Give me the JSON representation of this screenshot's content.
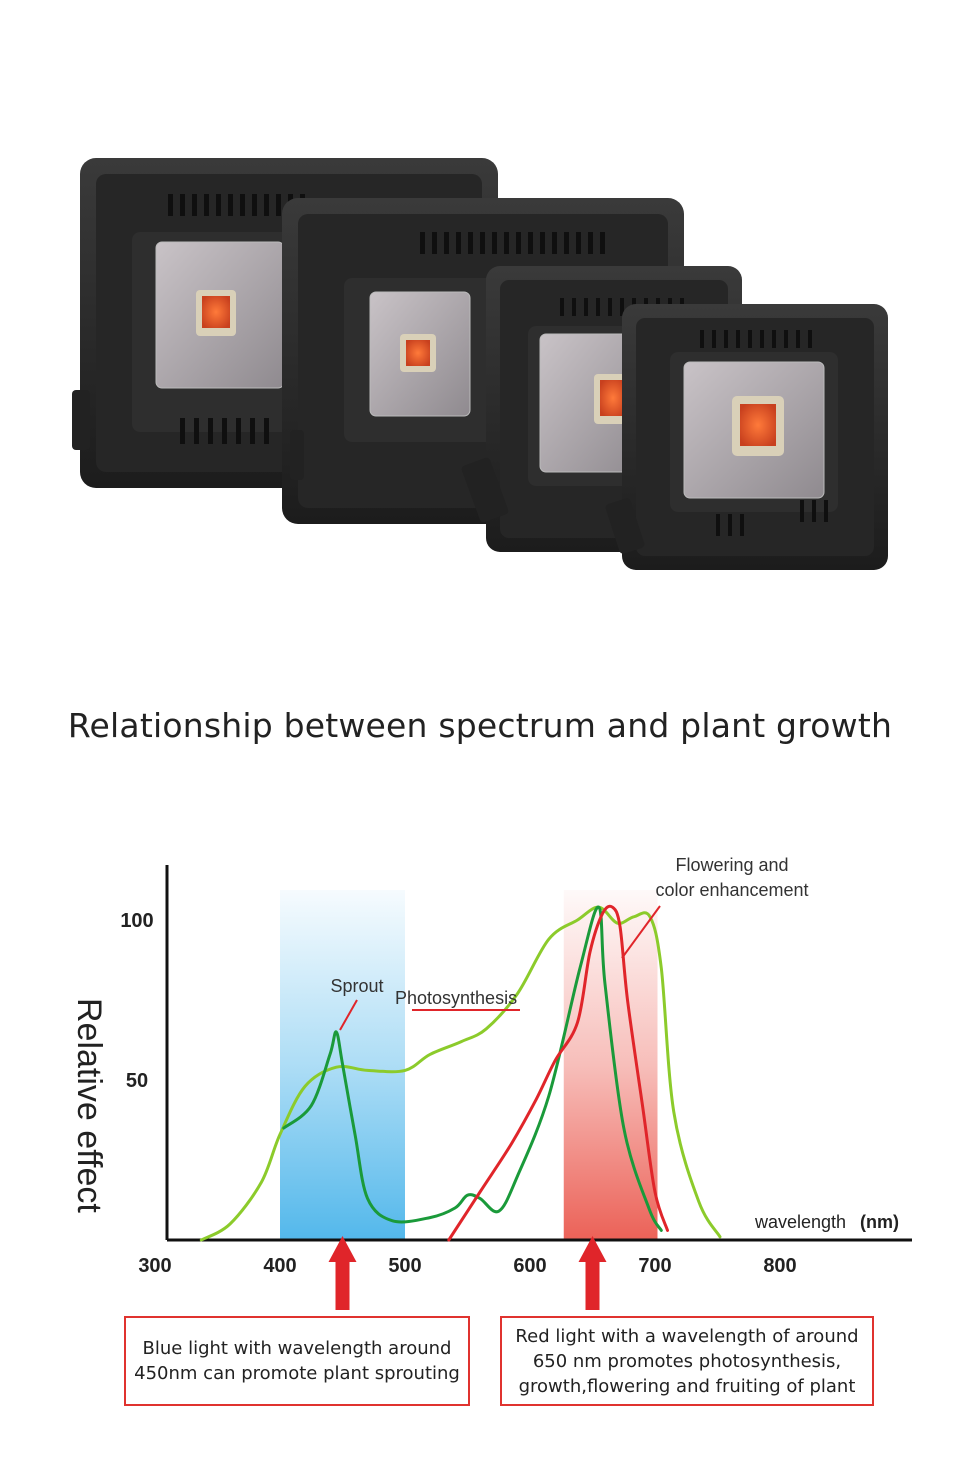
{
  "title": "Relationship between spectrum and plant growth",
  "photo": {
    "icons": [
      "grow-light-large",
      "grow-light-medium",
      "grow-light-small",
      "grow-light-xsmall"
    ]
  },
  "captions": {
    "blue": [
      "Blue light with wavelength around",
      "450nm can promote plant sprouting"
    ],
    "red": [
      "Red light with a wavelength of around",
      "650 nm promotes photosynthesis,",
      "growth,flowering and fruiting of plant"
    ]
  },
  "chart_data": {
    "type": "line",
    "ylabel": "Relative effect",
    "xlabel": "wavelength",
    "xunit": "(nm)",
    "xlim": [
      300,
      900
    ],
    "ylim": [
      0,
      115
    ],
    "xticks": [
      300,
      400,
      500,
      600,
      700,
      800
    ],
    "yticks": [
      50,
      100
    ],
    "grid": false,
    "bands": [
      {
        "name": "blue",
        "x": [
          400,
          500
        ],
        "color": "#4ab4ea"
      },
      {
        "name": "red",
        "x": [
          627,
          702
        ],
        "color": "#e8463a"
      }
    ],
    "series": [
      {
        "name": "Photosynthesis",
        "color": "#8ccb2b",
        "points": [
          [
            337,
            0
          ],
          [
            360,
            5
          ],
          [
            385,
            18
          ],
          [
            400,
            33
          ],
          [
            420,
            48
          ],
          [
            445,
            54
          ],
          [
            470,
            53
          ],
          [
            500,
            53
          ],
          [
            520,
            58
          ],
          [
            545,
            62
          ],
          [
            565,
            66
          ],
          [
            590,
            77
          ],
          [
            615,
            94
          ],
          [
            638,
            100
          ],
          [
            655,
            104
          ],
          [
            670,
            99
          ],
          [
            683,
            101
          ],
          [
            696,
            101
          ],
          [
            705,
            85
          ],
          [
            715,
            40
          ],
          [
            735,
            12
          ],
          [
            752,
            1
          ]
        ]
      },
      {
        "name": "Sprout",
        "color": "#1a9a3a",
        "points": [
          [
            403,
            35
          ],
          [
            425,
            42
          ],
          [
            440,
            58
          ],
          [
            445,
            65
          ],
          [
            450,
            55
          ],
          [
            460,
            33
          ],
          [
            470,
            13
          ],
          [
            490,
            6
          ],
          [
            520,
            7
          ],
          [
            540,
            10
          ],
          [
            550,
            14
          ],
          [
            560,
            13
          ],
          [
            575,
            9
          ],
          [
            590,
            20
          ],
          [
            615,
            45
          ],
          [
            640,
            85
          ],
          [
            655,
            104
          ],
          [
            660,
            80
          ],
          [
            675,
            35
          ],
          [
            695,
            10
          ],
          [
            705,
            3
          ]
        ]
      },
      {
        "name": "Flowering and color enhancement",
        "color": "#e0252a",
        "points": [
          [
            535,
            0
          ],
          [
            560,
            15
          ],
          [
            585,
            30
          ],
          [
            605,
            44
          ],
          [
            620,
            56
          ],
          [
            638,
            68
          ],
          [
            648,
            90
          ],
          [
            658,
            102
          ],
          [
            666,
            104
          ],
          [
            672,
            98
          ],
          [
            678,
            75
          ],
          [
            690,
            42
          ],
          [
            700,
            15
          ],
          [
            710,
            3
          ]
        ]
      }
    ],
    "annotations": [
      {
        "text": "Sprout",
        "color": "#e0252a"
      },
      {
        "text": "Photosynthesis",
        "color": "#e0252a"
      },
      {
        "text": [
          "Flowering and",
          "color enhancement"
        ],
        "color": "#e0252a"
      }
    ],
    "arrows": [
      {
        "x": 450,
        "color": "#e0252a"
      },
      {
        "x": 650,
        "color": "#e0252a"
      }
    ]
  }
}
